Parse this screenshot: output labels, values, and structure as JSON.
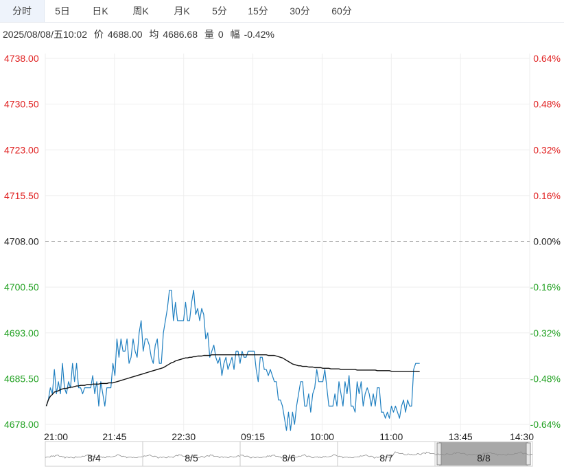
{
  "tabs": [
    {
      "label": "分时",
      "active": true
    },
    {
      "label": "5日",
      "active": false
    },
    {
      "label": "日K",
      "active": false
    },
    {
      "label": "周K",
      "active": false
    },
    {
      "label": "月K",
      "active": false
    },
    {
      "label": "5分",
      "active": false
    },
    {
      "label": "15分",
      "active": false
    },
    {
      "label": "30分",
      "active": false
    },
    {
      "label": "60分",
      "active": false
    }
  ],
  "info": {
    "datetime": "2025/08/08/五10:02",
    "price_label": "价",
    "price": "4688.00",
    "avg_label": "均",
    "avg": "4686.68",
    "vol_label": "量",
    "vol": "0",
    "change_label": "幅",
    "change": "-0.42%"
  },
  "colors": {
    "up": "#e02020",
    "down": "#20a020",
    "base": "#222222",
    "price_line": "#1f7fc0",
    "avg_line": "#111111",
    "grid": "#eeeeee",
    "navigator_sel": "#9e9e9e"
  },
  "chart_data": {
    "type": "line",
    "ylim": [
      4678.0,
      4738.0
    ],
    "base_price": 4708.0,
    "y_ticks_left": [
      "4738.00",
      "4730.50",
      "4723.00",
      "4715.50",
      "4708.00",
      "4700.50",
      "4693.00",
      "4685.50",
      "4678.00"
    ],
    "y_ticks_right": [
      "0.64%",
      "0.48%",
      "0.32%",
      "0.16%",
      "0.00%",
      "-0.16%",
      "-0.32%",
      "-0.48%",
      "-0.64%"
    ],
    "x_ticks": [
      "21:00",
      "21:45",
      "22:30",
      "09:15",
      "10:00",
      "11:00",
      "13:45",
      "14:30"
    ],
    "x_slots": 240,
    "series": [
      {
        "key": "price",
        "values": [
          4681,
          4682,
          4684,
          4683,
          4687,
          4683,
          4685,
          4683,
          4688,
          4684,
          4683,
          4685,
          4684,
          4688,
          4685,
          4688,
          4684,
          4684,
          4683,
          4684,
          4684,
          4684,
          4684,
          4686,
          4683,
          4685,
          4681,
          4685,
          4683,
          4681,
          4684,
          4684,
          4684,
          4688,
          4686,
          4692,
          4689,
          4692,
          4690,
          4690,
          4692,
          4688,
          4689,
          4692,
          4690,
          4689,
          4693,
          4695,
          4690,
          4692,
          4692,
          4691,
          4689,
          4688,
          4691,
          4692,
          4688,
          4688,
          4693,
          4695,
          4697,
          4700,
          4700,
          4695,
          4698,
          4695,
          4695,
          4695,
          4695,
          4698,
          4695,
          4695,
          4698,
          4700,
          4696,
          4697,
          4695,
          4697,
          4696,
          4692,
          4693,
          4689,
          4690,
          4691,
          4689,
          4688,
          4689,
          4686,
          4688,
          4689,
          4687,
          4688,
          4689,
          4687,
          4690,
          4690,
          4688,
          4690,
          4689,
          4689,
          4690,
          4690,
          4690,
          4690,
          4687,
          4685,
          4689,
          4689,
          4687,
          4687,
          4686,
          4687,
          4686,
          4685,
          4685,
          4682,
          4682,
          4681,
          4679,
          4677,
          4680,
          4677,
          4680,
          4678,
          4681,
          4683,
          4685,
          4685,
          4681,
          4681,
          4683,
          4680,
          4683,
          4684,
          4687,
          4685,
          4685,
          4685,
          4687,
          4684,
          4681,
          4681,
          4681,
          4683,
          4681,
          4685,
          4683,
          4681,
          4685,
          4683,
          4686,
          4681,
          4681,
          4680,
          4685,
          4683,
          4685,
          4681,
          4683,
          4684,
          4683,
          4681,
          4683,
          4681,
          4684,
          4684,
          4680,
          4680,
          4679,
          4680,
          4679,
          4681,
          4680,
          4681,
          4680,
          4679,
          4681,
          4682,
          4680,
          4682,
          4681,
          4681,
          4687,
          4688,
          4688,
          4688
        ]
      },
      {
        "key": "avg",
        "values": [
          4681,
          4682,
          4682.6,
          4682.9,
          4683.3,
          4683.4,
          4683.5,
          4683.7,
          4683.8,
          4683.9,
          4683.9,
          4684.0,
          4684.1,
          4684.1,
          4684.2,
          4684.3,
          4684.3,
          4684.4,
          4684.4,
          4684.4,
          4684.5,
          4684.5,
          4684.5,
          4684.6,
          4684.6,
          4684.6,
          4684.6,
          4684.7,
          4684.7,
          4684.7,
          4684.7,
          4684.8,
          4684.8,
          4684.8,
          4684.9,
          4685.0,
          4685.1,
          4685.2,
          4685.3,
          4685.4,
          4685.5,
          4685.6,
          4685.7,
          4685.8,
          4685.9,
          4686.0,
          4686.1,
          4686.2,
          4686.3,
          4686.4,
          4686.5,
          4686.6,
          4686.7,
          4686.8,
          4686.9,
          4687.0,
          4687.1,
          4687.2,
          4687.3,
          4687.5,
          4687.7,
          4687.9,
          4688.1,
          4688.2,
          4688.4,
          4688.5,
          4688.6,
          4688.7,
          4688.8,
          4688.9,
          4688.9,
          4689.0,
          4689.0,
          4689.1,
          4689.1,
          4689.2,
          4689.2,
          4689.2,
          4689.3,
          4689.3,
          4689.3,
          4689.3,
          4689.4,
          4689.4,
          4689.4,
          4689.4,
          4689.4,
          4689.4,
          4689.4,
          4689.4,
          4689.4,
          4689.4,
          4689.4,
          4689.4,
          4689.4,
          4689.4,
          4689.4,
          4689.4,
          4689.4,
          4689.4,
          4689.4,
          4689.4,
          4689.4,
          4689.4,
          4689.4,
          4689.4,
          4689.4,
          4689.4,
          4689.4,
          4689.4,
          4689.3,
          4689.3,
          4689.3,
          4689.3,
          4689.2,
          4689.1,
          4689.0,
          4688.9,
          4688.7,
          4688.5,
          4688.3,
          4688.1,
          4687.9,
          4687.8,
          4687.7,
          4687.6,
          4687.6,
          4687.5,
          4687.5,
          4687.5,
          4687.4,
          4687.4,
          4687.4,
          4687.3,
          4687.3,
          4687.3,
          4687.3,
          4687.2,
          4687.2,
          4687.2,
          4687.2,
          4687.1,
          4687.1,
          4687.1,
          4687.1,
          4687.1,
          4687.0,
          4687.0,
          4687.0,
          4687.0,
          4687.0,
          4687.0,
          4687.0,
          4687.0,
          4686.9,
          4686.9,
          4686.9,
          4686.9,
          4686.9,
          4686.9,
          4686.9,
          4686.9,
          4686.9,
          4686.9,
          4686.8,
          4686.8,
          4686.8,
          4686.8,
          4686.8,
          4686.8,
          4686.8,
          4686.7,
          4686.7,
          4686.7,
          4686.7,
          4686.7,
          4686.7,
          4686.7,
          4686.7,
          4686.7,
          4686.7,
          4686.7,
          4686.7,
          4686.7,
          4686.7,
          4686.68
        ]
      }
    ],
    "grid": true,
    "navigator": {
      "labels": [
        "8/4",
        "8/5",
        "8/6",
        "8/7",
        "8/8"
      ],
      "selected": "8/8"
    }
  }
}
